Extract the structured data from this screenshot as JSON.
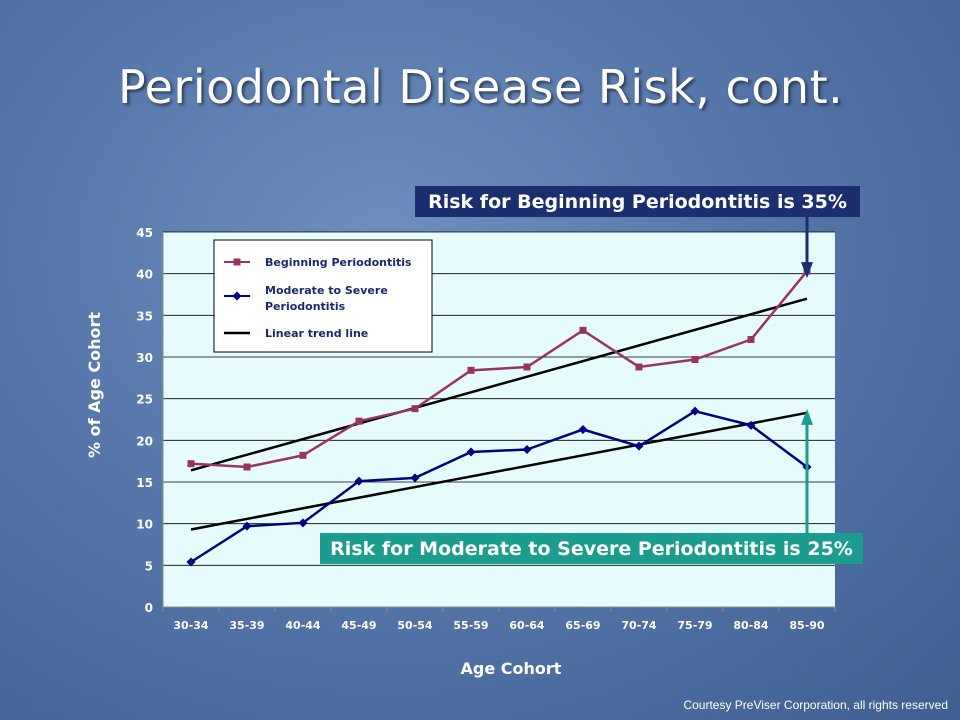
{
  "slide": {
    "title": "Periodontal Disease Risk, cont.",
    "credit": "Courtesy PreViser Corporation, all rights reserved",
    "callout_top": "Risk for Beginning Periodontitis is 35%",
    "callout_bottom": "Risk for Moderate to Severe Periodontitis is 25%"
  },
  "colors": {
    "plot_bg": "#e6fbfb",
    "beginning": "#993366",
    "moderate": "#000080",
    "trend": "#000000",
    "callout_top_bg": "#1b2e6e",
    "callout_bottom_bg": "#1b9c8e",
    "arrow_top": "#1b2e6e",
    "arrow_bottom": "#1b9c8e"
  },
  "chart_data": {
    "type": "line",
    "xlabel": "Age Cohort",
    "ylabel": "% of Age Cohort",
    "ylim": [
      0,
      45
    ],
    "yticks": [
      0,
      5,
      10,
      15,
      20,
      25,
      30,
      35,
      40,
      45
    ],
    "grid": true,
    "legend_position": "top-left",
    "categories": [
      "30-34",
      "35-39",
      "40-44",
      "45-49",
      "50-54",
      "55-59",
      "60-64",
      "65-69",
      "70-74",
      "75-79",
      "80-84",
      "85-90"
    ],
    "series": [
      {
        "name": "Beginning Periodontitis",
        "marker": "square",
        "values": [
          17.2,
          16.8,
          18.2,
          22.3,
          23.8,
          28.4,
          28.8,
          33.2,
          28.8,
          29.7,
          32.1,
          40.3
        ]
      },
      {
        "name": "Moderate to Severe Periodontitis",
        "marker": "diamond",
        "values": [
          5.4,
          9.7,
          10.1,
          15.1,
          15.5,
          18.6,
          18.9,
          21.3,
          19.3,
          23.5,
          21.8,
          16.8
        ]
      }
    ],
    "trendlines": [
      {
        "name": "Linear trend line",
        "of": "Beginning Periodontitis",
        "start": 16.4,
        "end": 37.0
      },
      {
        "name": "Linear trend line",
        "of": "Moderate to Severe Periodontitis",
        "start": 9.3,
        "end": 23.3
      }
    ],
    "legend": [
      {
        "label": "Beginning Periodontitis",
        "line1": "Beginning Periodontitis",
        "line2": ""
      },
      {
        "label": "Moderate to Severe Periodontitis",
        "line1": "Moderate to Severe",
        "line2": "Periodontitis"
      },
      {
        "label": "Linear trend line",
        "line1": "Linear trend line",
        "line2": ""
      }
    ]
  }
}
